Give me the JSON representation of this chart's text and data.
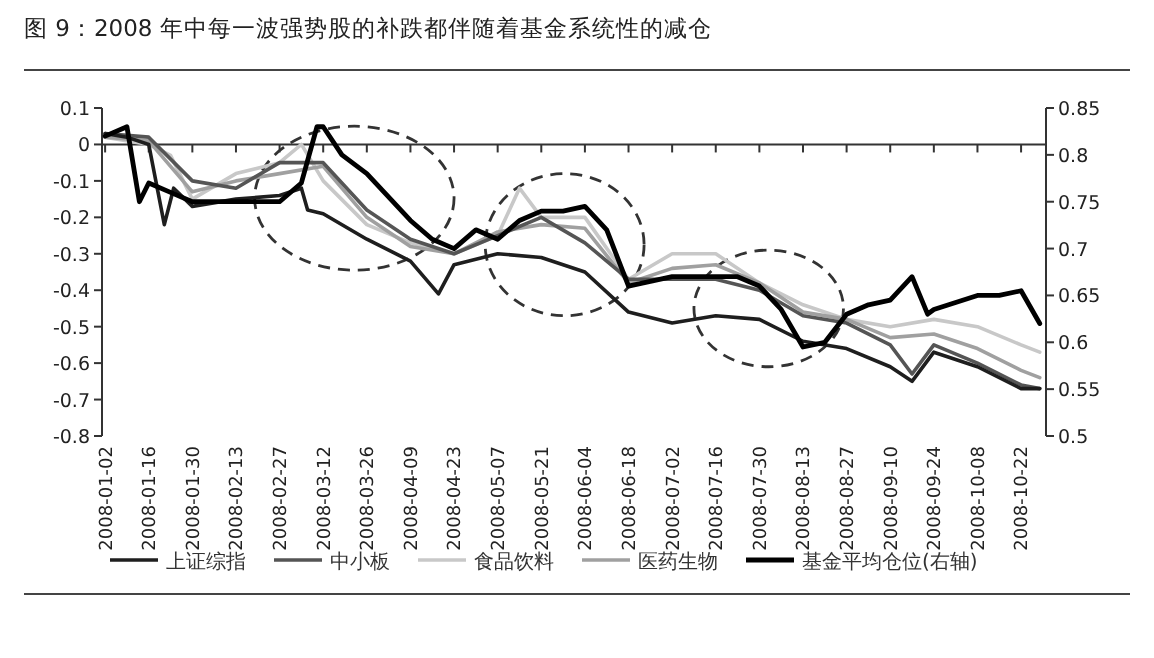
{
  "chart_data": {
    "type": "line",
    "title": "图 9：2008 年中每一波强势股的补跌都伴随着基金系统性的减仓",
    "xlim": [
      "2008-01-01",
      "2008-10-30"
    ],
    "xticks": [
      "2008-01-02",
      "2008-01-16",
      "2008-01-30",
      "2008-02-13",
      "2008-02-27",
      "2008-03-12",
      "2008-03-26",
      "2008-04-09",
      "2008-04-23",
      "2008-05-07",
      "2008-05-21",
      "2008-06-04",
      "2008-06-18",
      "2008-07-02",
      "2008-07-16",
      "2008-07-30",
      "2008-08-13",
      "2008-08-27",
      "2008-09-10",
      "2008-09-24",
      "2008-10-08",
      "2008-10-22"
    ],
    "ylim": [
      -0.8,
      0.1
    ],
    "yticks": [
      0.1,
      0,
      -0.1,
      -0.2,
      -0.3,
      -0.4,
      -0.5,
      -0.6,
      -0.7,
      -0.8
    ],
    "y2lim": [
      0.5,
      0.85
    ],
    "y2ticks": [
      0.85,
      0.8,
      0.75,
      0.7,
      0.65,
      0.6,
      0.55,
      0.5
    ],
    "legend": "bottom",
    "series": [
      {
        "name": "上证综指",
        "color": "#1e1e1e",
        "x": [
          "2008-01-02",
          "2008-01-09",
          "2008-01-16",
          "2008-01-21",
          "2008-01-24",
          "2008-01-30",
          "2008-02-13",
          "2008-02-27",
          "2008-03-05",
          "2008-03-07",
          "2008-03-12",
          "2008-03-26",
          "2008-04-09",
          "2008-04-18",
          "2008-04-23",
          "2008-05-07",
          "2008-05-21",
          "2008-06-04",
          "2008-06-18",
          "2008-07-02",
          "2008-07-16",
          "2008-07-30",
          "2008-08-13",
          "2008-08-27",
          "2008-09-10",
          "2008-09-17",
          "2008-09-24",
          "2008-10-08",
          "2008-10-22",
          "2008-10-28"
        ],
        "values": [
          0.03,
          0.02,
          0.0,
          -0.22,
          -0.12,
          -0.17,
          -0.15,
          -0.14,
          -0.12,
          -0.18,
          -0.19,
          -0.26,
          -0.32,
          -0.41,
          -0.33,
          -0.3,
          -0.31,
          -0.35,
          -0.46,
          -0.49,
          -0.47,
          -0.48,
          -0.54,
          -0.56,
          -0.61,
          -0.65,
          -0.57,
          -0.61,
          -0.67,
          -0.67
        ]
      },
      {
        "name": "中小板",
        "color": "#555555",
        "x": [
          "2008-01-02",
          "2008-01-16",
          "2008-01-30",
          "2008-02-13",
          "2008-02-27",
          "2008-03-12",
          "2008-03-26",
          "2008-04-09",
          "2008-04-23",
          "2008-05-07",
          "2008-05-21",
          "2008-06-04",
          "2008-06-18",
          "2008-07-02",
          "2008-07-16",
          "2008-07-30",
          "2008-08-13",
          "2008-08-27",
          "2008-09-10",
          "2008-09-17",
          "2008-09-24",
          "2008-10-08",
          "2008-10-22",
          "2008-10-28"
        ],
        "values": [
          0.03,
          0.02,
          -0.1,
          -0.12,
          -0.05,
          -0.05,
          -0.18,
          -0.26,
          -0.3,
          -0.25,
          -0.2,
          -0.27,
          -0.37,
          -0.37,
          -0.37,
          -0.4,
          -0.47,
          -0.49,
          -0.55,
          -0.63,
          -0.55,
          -0.6,
          -0.66,
          -0.67
        ]
      },
      {
        "name": "食品饮料",
        "color": "#c8c8c8",
        "x": [
          "2008-01-02",
          "2008-01-16",
          "2008-01-23",
          "2008-01-30",
          "2008-02-13",
          "2008-02-27",
          "2008-03-05",
          "2008-03-12",
          "2008-03-26",
          "2008-04-09",
          "2008-04-23",
          "2008-05-07",
          "2008-05-14",
          "2008-05-21",
          "2008-06-04",
          "2008-06-18",
          "2008-07-02",
          "2008-07-16",
          "2008-07-30",
          "2008-08-13",
          "2008-08-27",
          "2008-09-10",
          "2008-09-24",
          "2008-10-08",
          "2008-10-22",
          "2008-10-28"
        ],
        "values": [
          0.02,
          0.0,
          -0.03,
          -0.15,
          -0.08,
          -0.05,
          0.0,
          -0.1,
          -0.22,
          -0.27,
          -0.3,
          -0.25,
          -0.12,
          -0.2,
          -0.2,
          -0.37,
          -0.3,
          -0.3,
          -0.38,
          -0.44,
          -0.48,
          -0.5,
          -0.48,
          -0.5,
          -0.55,
          -0.57
        ]
      },
      {
        "name": "医药生物",
        "color": "#a0a0a0",
        "x": [
          "2008-01-02",
          "2008-01-16",
          "2008-01-30",
          "2008-02-13",
          "2008-02-27",
          "2008-03-12",
          "2008-03-26",
          "2008-04-09",
          "2008-04-23",
          "2008-05-07",
          "2008-05-21",
          "2008-06-04",
          "2008-06-18",
          "2008-07-02",
          "2008-07-16",
          "2008-07-30",
          "2008-08-13",
          "2008-08-27",
          "2008-09-10",
          "2008-09-24",
          "2008-10-08",
          "2008-10-22",
          "2008-10-28"
        ],
        "values": [
          0.02,
          0.01,
          -0.13,
          -0.1,
          -0.08,
          -0.06,
          -0.2,
          -0.28,
          -0.3,
          -0.24,
          -0.22,
          -0.23,
          -0.38,
          -0.34,
          -0.33,
          -0.38,
          -0.46,
          -0.48,
          -0.53,
          -0.52,
          -0.56,
          -0.62,
          -0.64
        ]
      },
      {
        "name": "基金平均仓位(右轴)",
        "color": "#000000",
        "axis": "y2",
        "x": [
          "2008-01-02",
          "2008-01-09",
          "2008-01-13",
          "2008-01-16",
          "2008-01-23",
          "2008-01-30",
          "2008-02-13",
          "2008-02-27",
          "2008-03-05",
          "2008-03-10",
          "2008-03-12",
          "2008-03-18",
          "2008-03-26",
          "2008-04-09",
          "2008-04-16",
          "2008-04-23",
          "2008-04-30",
          "2008-05-07",
          "2008-05-14",
          "2008-05-21",
          "2008-05-28",
          "2008-06-04",
          "2008-06-11",
          "2008-06-18",
          "2008-06-25",
          "2008-07-02",
          "2008-07-16",
          "2008-07-23",
          "2008-07-30",
          "2008-08-06",
          "2008-08-13",
          "2008-08-20",
          "2008-08-27",
          "2008-09-03",
          "2008-09-10",
          "2008-09-17",
          "2008-09-22",
          "2008-09-24",
          "2008-10-08",
          "2008-10-15",
          "2008-10-22",
          "2008-10-28"
        ],
        "values": [
          0.82,
          0.83,
          0.75,
          0.77,
          0.76,
          0.75,
          0.75,
          0.75,
          0.77,
          0.83,
          0.83,
          0.8,
          0.78,
          0.73,
          0.71,
          0.7,
          0.72,
          0.71,
          0.73,
          0.74,
          0.74,
          0.745,
          0.72,
          0.66,
          0.665,
          0.67,
          0.67,
          0.67,
          0.66,
          0.635,
          0.595,
          0.6,
          0.63,
          0.64,
          0.645,
          0.67,
          0.63,
          0.635,
          0.65,
          0.65,
          0.655,
          0.62
        ]
      }
    ]
  }
}
